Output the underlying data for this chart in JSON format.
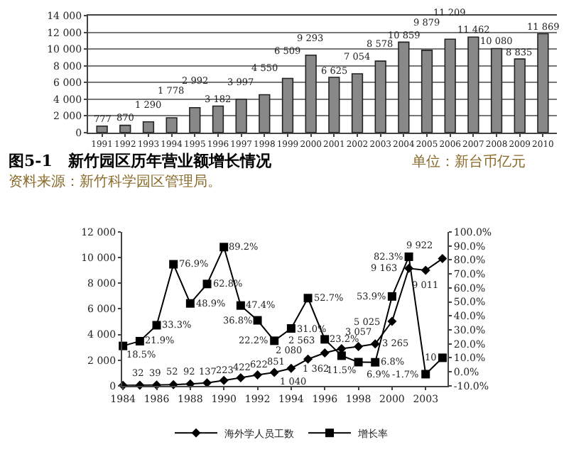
{
  "chart_data": [
    {
      "type": "bar",
      "title": "图5-1　新竹园区历年营业额增长情况",
      "annotations": [
        "单位：新台币亿元",
        "资料来源：新竹科学园区管理局。"
      ],
      "categories": [
        "1991",
        "1992",
        "1993",
        "1994",
        "1995",
        "1996",
        "1997",
        "1998",
        "1999",
        "2000",
        "2001",
        "2002",
        "2003",
        "2004",
        "2005",
        "2006",
        "2007",
        "2008",
        "2009",
        "2010"
      ],
      "values": [
        777,
        870,
        1290,
        1778,
        2992,
        3182,
        3997,
        4550,
        6509,
        9293,
        6625,
        7054,
        8578,
        10859,
        9879,
        11209,
        11462,
        10080,
        8835,
        11869
      ],
      "value_labels": [
        "777",
        "870",
        "1 290",
        "1 778",
        "2 992",
        "3 182",
        "3 997",
        "4 550",
        "6 509",
        "9 293",
        "6 625",
        "7 054",
        "8 578",
        "10 859",
        "9 879",
        "11 209",
        "11 462",
        "10 080",
        "8 835",
        "11 869"
      ],
      "color": "#888888",
      "ylim": [
        0,
        14000
      ],
      "yticks": [
        0,
        {
          "value": 2000,
          "label": "2 000"
        },
        {
          "value": 4000,
          "label": "4 000"
        },
        {
          "value": 6000,
          "label": "6 000"
        },
        {
          "value": 8000,
          "label": "8 000"
        },
        {
          "value": 10000,
          "label": "10 000"
        },
        {
          "value": 12000,
          "label": "12 000"
        },
        {
          "value": 14000,
          "label": "14 000"
        }
      ],
      "grid": "y",
      "legend": false
    },
    {
      "type": "line",
      "categories": [
        "1984",
        null,
        "1986",
        null,
        "1988",
        null,
        "1990",
        null,
        "1992",
        null,
        "1994",
        null,
        "1996",
        null,
        "1998",
        null,
        "2000",
        null,
        "2003",
        null
      ],
      "series": [
        {
          "name": "海外学人员工数",
          "color": "#000000",
          "marker": "diamond",
          "values": [
            32,
            39,
            52,
            92,
            137,
            223,
            422,
            622,
            851,
            1040,
            1362,
            2080,
            2563,
            2900,
            3057,
            3265,
            5025,
            9163,
            9011,
            9922
          ],
          "value_labels": [
            "32",
            "39",
            "52",
            "92",
            "137",
            "223",
            "422",
            "622",
            "851",
            "1 040",
            "1 362",
            "2 080",
            "2 563",
            null,
            "3 057",
            "3 265",
            "5 025",
            "9 163",
            "9 011",
            "9 922"
          ]
        },
        {
          "name": "增长率",
          "color": "#000000",
          "marker": "square",
          "axis": "y2",
          "values": [
            18.5,
            21.9,
            33.3,
            76.9,
            48.9,
            62.8,
            89.2,
            47.4,
            36.8,
            22.2,
            31.0,
            52.7,
            23.2,
            11.5,
            6.9,
            6.8,
            53.9,
            82.3,
            -1.7,
            10
          ],
          "value_labels": [
            "18.5%",
            "21.9%",
            "33.3%",
            "76.9%",
            "48.9%",
            "62.8%",
            "89.2%",
            "47.4%",
            "36.8%",
            "22.2%",
            "31.0%",
            "52.7%",
            "23.2%",
            "11.5%",
            "6.9%",
            "6.8%",
            "53.9%",
            "82.3%",
            "-1.7%",
            "10"
          ]
        }
      ],
      "ylim": [
        0,
        12000
      ],
      "yticks": [
        0,
        {
          "value": 2000,
          "label": "2 000"
        },
        {
          "value": 4000,
          "label": "4 000"
        },
        {
          "value": 6000,
          "label": "6 000"
        },
        {
          "value": 8000,
          "label": "8 000"
        },
        {
          "value": 10000,
          "label": "10 000"
        },
        {
          "value": 12000,
          "label": "12 000"
        }
      ],
      "y2lim": [
        -10,
        100
      ],
      "y2ticks": [
        {
          "value": -10,
          "label": "-10.0%"
        },
        {
          "value": 0,
          "label": "0.0%"
        },
        {
          "value": 10,
          "label": "10.0%"
        },
        {
          "value": 20,
          "label": "20.0%"
        },
        {
          "value": 30,
          "label": "30.0%"
        },
        {
          "value": 40,
          "label": "40.0%"
        },
        {
          "value": 50,
          "label": "50.0%"
        },
        {
          "value": 60,
          "label": "60.0%"
        },
        {
          "value": 70,
          "label": "70.0%"
        },
        {
          "value": 80,
          "label": "80.0%"
        },
        {
          "value": 90,
          "label": "90.0%"
        },
        {
          "value": 100,
          "label": "100.0%"
        }
      ],
      "grid": false,
      "legend": "bottom"
    }
  ]
}
